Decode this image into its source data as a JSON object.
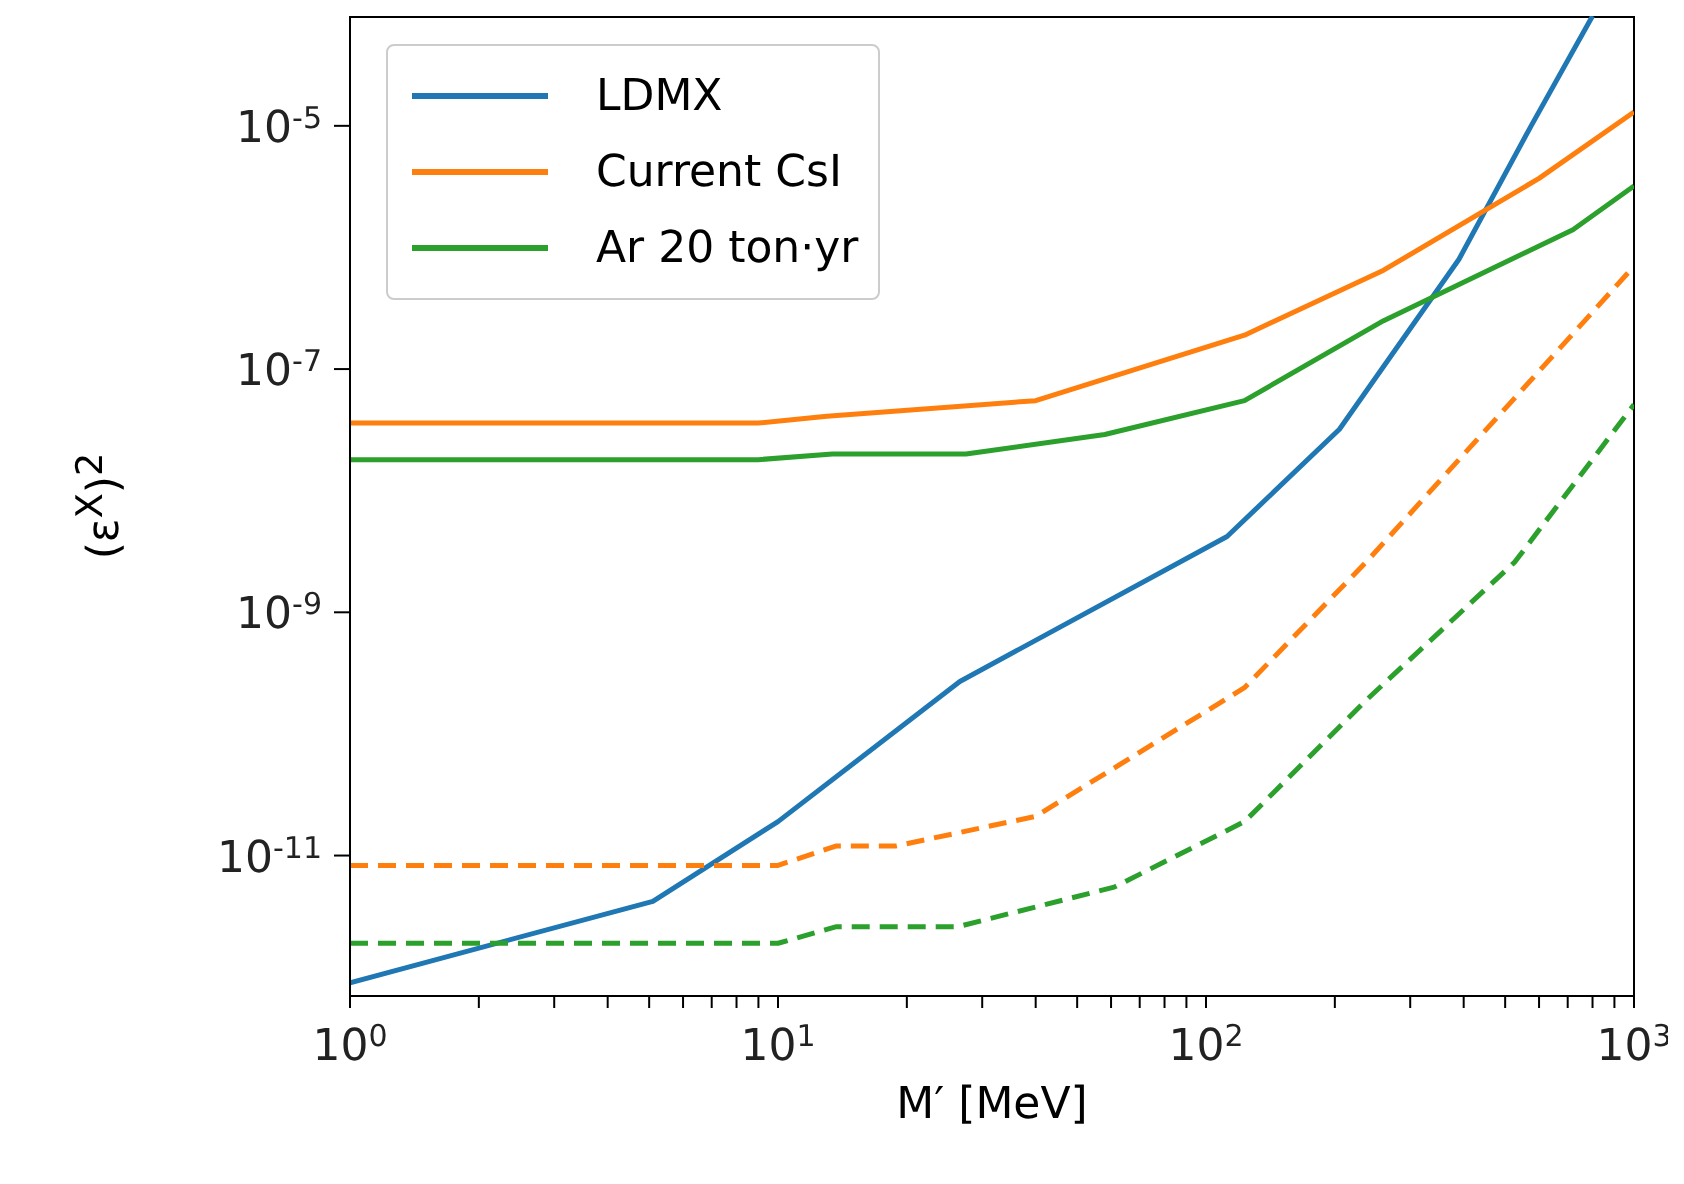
{
  "chart_data": {
    "type": "line",
    "xlabel": "M′ [MeV]",
    "ylabel": "(ε$^{X}$)$^{2}$",
    "log": "xy",
    "xlim": [
      1,
      1000
    ],
    "ylim": [
      7e-13,
      8e-05
    ],
    "xticks": [
      {
        "value": 1,
        "label": "10$^{0}$"
      },
      {
        "value": 2,
        "label": null
      },
      {
        "value": 3,
        "label": null
      },
      {
        "value": 4,
        "label": null
      },
      {
        "value": 5,
        "label": null
      },
      {
        "value": 6,
        "label": null
      },
      {
        "value": 7,
        "label": null
      },
      {
        "value": 8,
        "label": null
      },
      {
        "value": 9,
        "label": null
      },
      {
        "value": 10,
        "label": "10$^{1}$"
      },
      {
        "value": 20,
        "label": null
      },
      {
        "value": 30,
        "label": null
      },
      {
        "value": 40,
        "label": null
      },
      {
        "value": 50,
        "label": null
      },
      {
        "value": 60,
        "label": null
      },
      {
        "value": 70,
        "label": null
      },
      {
        "value": 80,
        "label": null
      },
      {
        "value": 90,
        "label": null
      },
      {
        "value": 100,
        "label": "10$^{2}$"
      },
      {
        "value": 200,
        "label": null
      },
      {
        "value": 300,
        "label": null
      },
      {
        "value": 400,
        "label": null
      },
      {
        "value": 500,
        "label": null
      },
      {
        "value": 600,
        "label": null
      },
      {
        "value": 700,
        "label": null
      },
      {
        "value": 800,
        "label": null
      },
      {
        "value": 900,
        "label": null
      },
      {
        "value": 1000,
        "label": "10$^{3}$"
      }
    ],
    "yticks": [
      {
        "value": 1e-11,
        "label": "10$^{-11}$"
      },
      {
        "value": 1e-09,
        "label": "10$^{-9}$"
      },
      {
        "value": 1e-07,
        "label": "10$^{-7}$"
      },
      {
        "value": 1e-05,
        "label": "10$^{-5}$"
      }
    ],
    "legend": "top left",
    "grid": false,
    "marker": "none",
    "series": [
      {
        "name": "LDMX",
        "color": "#1f77b4",
        "line_style": "solid",
        "x": [
          1,
          5.1,
          10,
          26.6,
          112,
          205,
          390,
          575,
          800
        ],
        "values": [
          9e-13,
          4.2e-12,
          1.9e-11,
          2.7e-10,
          4.2e-09,
          3.2e-08,
          8e-07,
          1e-05,
          8e-05
        ]
      },
      {
        "name": "Current CsI",
        "color": "#ff7f0e",
        "line_style": "solid",
        "x": [
          1,
          9,
          13,
          40,
          123,
          260,
          600,
          1000
        ],
        "values": [
          3.6e-08,
          3.6e-08,
          4.1e-08,
          5.5e-08,
          1.9e-07,
          6.5e-07,
          3.7e-06,
          1.3e-05
        ]
      },
      {
        "name": "Ar 20 ton·yr",
        "color": "#2ca02c",
        "line_style": "solid",
        "x": [
          1,
          9,
          13.4,
          27.5,
          58,
          123,
          260,
          720,
          1000
        ],
        "values": [
          1.8e-08,
          1.8e-08,
          2e-08,
          2e-08,
          2.9e-08,
          5.5e-08,
          2.5e-07,
          1.4e-06,
          3.2e-06
        ]
      },
      {
        "color": "#ff7f0e",
        "line_style": "dashed",
        "x": [
          1,
          10,
          13.7,
          18.9,
          40,
          123,
          237,
          1000
        ],
        "values": [
          8.3e-12,
          8.3e-12,
          1.2e-11,
          1.2e-11,
          2.1e-11,
          2.4e-10,
          2.6e-09,
          7e-07
        ]
      },
      {
        "color": "#2ca02c",
        "line_style": "dashed",
        "x": [
          1,
          10,
          13.7,
          26.3,
          61,
          123,
          237,
          527,
          1000
        ],
        "values": [
          1.9e-12,
          1.9e-12,
          2.6e-12,
          2.6e-12,
          5.5e-12,
          1.9e-11,
          1.9e-10,
          2.6e-09,
          5.1e-08
        ]
      }
    ]
  }
}
